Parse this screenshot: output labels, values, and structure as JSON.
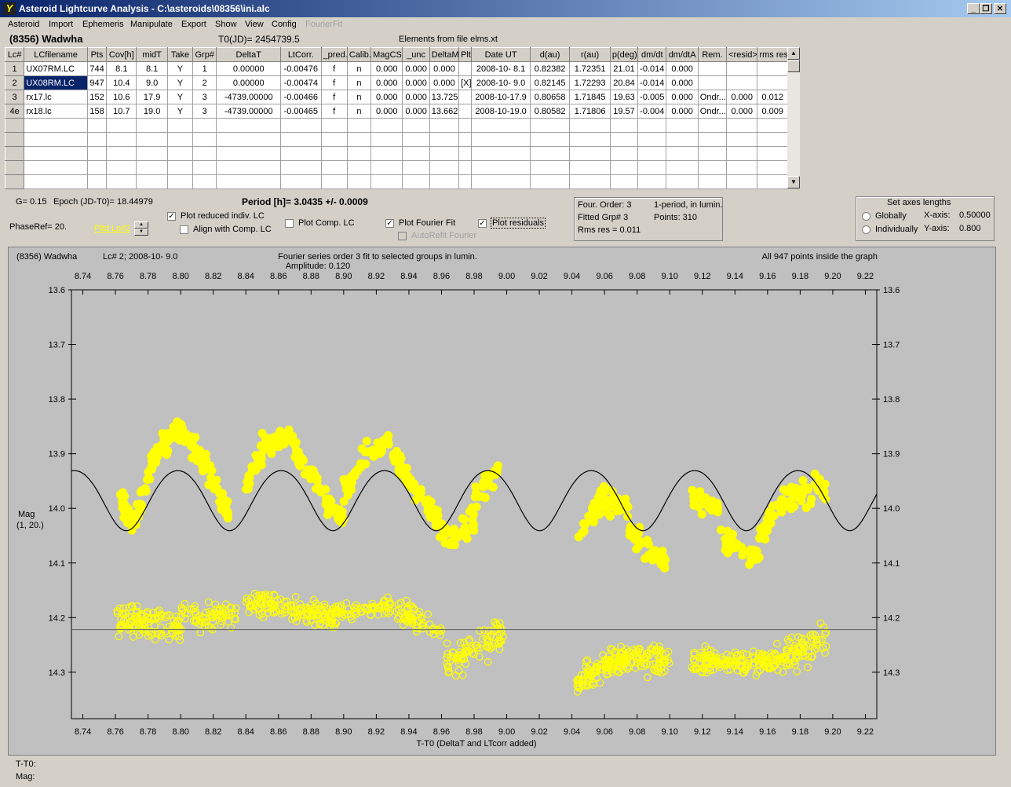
{
  "window": {
    "title": "Asteroid Lightcurve Analysis - C:\\asteroids\\08356\\ini.alc",
    "app_icon": "lcalc-app-icon"
  },
  "menu": {
    "items": [
      "Asteroid",
      "Import",
      "Ephemeris",
      "Manipulate",
      "Export",
      "Show",
      "View",
      "Config"
    ],
    "disabled_item": "FourierFit"
  },
  "header": {
    "asteroid_name": "(8356) Wadwha",
    "t0": "T0(JD)= 2454739.5",
    "elements": "Elements from file elms.xt"
  },
  "table": {
    "columns": [
      "Lc#",
      "LCfilename",
      "Pts",
      "Cov[h]",
      "midT",
      "Take",
      "Grp#",
      "DeltaT",
      "LtCorr.",
      "_pred.",
      "Calib.",
      "MagCS",
      "_unc",
      "DeltaM",
      "Plt",
      "Date UT",
      "d(au)",
      "r(au)",
      "p(deg)",
      "dm/dt",
      "dm/dtA",
      "Rem.",
      "<resid>",
      "rms res"
    ],
    "rows": [
      [
        "1",
        "UX07RM.LC",
        "744",
        "8.1",
        "8.1",
        "Y",
        "1",
        "0.00000",
        "-0.00476",
        "f",
        "n",
        "0.000",
        "0.000",
        "0.000",
        "",
        "2008-10- 8.1",
        "0.82382",
        "1.72351",
        "21.01",
        "-0.014",
        "0.000",
        "",
        "",
        ""
      ],
      [
        "2",
        "UX08RM.LC",
        "947",
        "10.4",
        "9.0",
        "Y",
        "2",
        "0.00000",
        "-0.00474",
        "f",
        "n",
        "0.000",
        "0.000",
        "0.000",
        "[X]",
        "2008-10- 9.0",
        "0.82145",
        "1.72293",
        "20.84",
        "-0.014",
        "0.000",
        "",
        "",
        ""
      ],
      [
        "3",
        "rx17.lc",
        "152",
        "10.6",
        "17.9",
        "Y",
        "3",
        "-4739.00000",
        "-0.00466",
        "f",
        "n",
        "0.000",
        "0.000",
        "13.725",
        "",
        "2008-10-17.9",
        "0.80658",
        "1.71845",
        "19.63",
        "-0.005",
        "0.000",
        "Ondr...",
        "0.000",
        "0.012"
      ],
      [
        "4e",
        "rx18.lc",
        "158",
        "10.7",
        "19.0",
        "Y",
        "3",
        "-4739.00000",
        "-0.00465",
        "f",
        "n",
        "0.000",
        "0.000",
        "13.662",
        "",
        "2008-10-19.0",
        "0.80582",
        "1.71806",
        "19.57",
        "-0.004",
        "0.000",
        "Ondr...",
        "0.000",
        "0.009"
      ]
    ],
    "selected_row": 1
  },
  "controls": {
    "g_value": "G= 0.15",
    "epoch": "Epoch (JD-T0)= 18.44979",
    "period": "Period [h]= 3.0435 +/- 0.0009",
    "phase_ref": "PhaseRef= 20.",
    "pltd_lc": "Pltd Lc#2",
    "plot_reduced": {
      "label": "Plot reduced indiv. LC",
      "checked": true
    },
    "align_comp": {
      "label": "Align with Comp. LC",
      "checked": false
    },
    "plot_comp": {
      "label": "Plot Comp. LC",
      "checked": false
    },
    "plot_fourier": {
      "label": "Plot Fourier Fit",
      "checked": true
    },
    "autorefit": {
      "label": "AutoRefit Fourier",
      "checked": false
    },
    "plot_residuals": {
      "label": "Plot residuals",
      "checked": true
    }
  },
  "fourier_info": {
    "order": "Four. Order:  3",
    "mode": "1-period, in lumin.",
    "fitted": "Fitted Grp# 3",
    "points": "Points: 310",
    "rms": "Rms res     = 0.011"
  },
  "axes": {
    "title": "Set axes lengths",
    "globally": "Globally",
    "individually": "Individually",
    "selected": "Globally",
    "xaxis_label": "X-axis:",
    "xaxis_val": "0.50000",
    "yaxis_label": "Y-axis:",
    "yaxis_val": "0.800"
  },
  "plot": {
    "name": "(8356) Wadwha",
    "lc": "Lc# 2; 2008-10- 9.0",
    "fourier_title": "Fourier series order 3 fit to selected groups in lumin.",
    "amplitude": "Amplitude: 0.120",
    "points_info": "All 947 points inside the graph",
    "ylabel": "Mag",
    "ylabel2": "(1, 20.)",
    "xlabel": "T-T0 (DeltaT and LTcorr added)",
    "colors": {
      "points": "#ffff00",
      "background": "#c0c0c0",
      "curve": "#000000",
      "residual_line": "#606060"
    }
  },
  "chart_data": {
    "type": "scatter",
    "x_ticks": [
      "8.74",
      "8.76",
      "8.78",
      "8.80",
      "8.82",
      "8.84",
      "8.86",
      "8.88",
      "8.90",
      "8.92",
      "8.94",
      "8.96",
      "8.98",
      "9.00",
      "9.02",
      "9.04",
      "9.06",
      "9.08",
      "9.10",
      "9.12",
      "9.14",
      "9.16",
      "9.18",
      "9.20",
      "9.22"
    ],
    "y_ticks": [
      "13.6",
      "13.7",
      "13.8",
      "13.9",
      "14.0",
      "14.1",
      "14.2",
      "14.3"
    ],
    "xlim": [
      8.733,
      9.227
    ],
    "ylim": [
      13.6,
      14.385
    ],
    "y_inverted": true,
    "fourier_period_days": 0.0634,
    "fourier_mean": 13.982,
    "fourier_amplitude": 0.055,
    "residual_baseline": 14.222,
    "observations": [
      {
        "x": [
          8.762,
          8.772
        ],
        "y": [
          13.97,
          14.04
        ],
        "spread": 0.035,
        "n": 30
      },
      {
        "x": [
          8.772,
          8.785
        ],
        "y": [
          14.02,
          13.9
        ],
        "spread": 0.035,
        "n": 30
      },
      {
        "x": [
          8.785,
          8.8
        ],
        "y": [
          13.9,
          13.85
        ],
        "spread": 0.035,
        "n": 40
      },
      {
        "x": [
          8.8,
          8.815
        ],
        "y": [
          13.85,
          13.92
        ],
        "spread": 0.035,
        "n": 40
      },
      {
        "x": [
          8.815,
          8.83
        ],
        "y": [
          13.92,
          14.02
        ],
        "spread": 0.035,
        "n": 30
      },
      {
        "x": [
          8.84,
          8.85
        ],
        "y": [
          13.96,
          13.9
        ],
        "spread": 0.03,
        "n": 20
      },
      {
        "x": [
          8.85,
          8.87
        ],
        "y": [
          13.88,
          13.87
        ],
        "spread": 0.035,
        "n": 40
      },
      {
        "x": [
          8.87,
          8.885
        ],
        "y": [
          13.9,
          13.96
        ],
        "spread": 0.035,
        "n": 30
      },
      {
        "x": [
          8.885,
          8.9
        ],
        "y": [
          13.97,
          14.02
        ],
        "spread": 0.03,
        "n": 30
      },
      {
        "x": [
          8.9,
          8.915
        ],
        "y": [
          13.97,
          13.9
        ],
        "spread": 0.035,
        "n": 30
      },
      {
        "x": [
          8.915,
          8.928
        ],
        "y": [
          13.9,
          13.88
        ],
        "spread": 0.03,
        "n": 20
      },
      {
        "x": [
          8.93,
          8.945
        ],
        "y": [
          13.9,
          13.97
        ],
        "spread": 0.035,
        "n": 30
      },
      {
        "x": [
          8.945,
          8.965
        ],
        "y": [
          13.97,
          14.06
        ],
        "spread": 0.035,
        "n": 35
      },
      {
        "x": [
          8.965,
          8.98
        ],
        "y": [
          14.06,
          14.02
        ],
        "spread": 0.04,
        "n": 30
      },
      {
        "x": [
          8.98,
          8.995
        ],
        "y": [
          13.98,
          13.93
        ],
        "spread": 0.035,
        "n": 25
      },
      {
        "x": [
          9.044,
          9.06
        ],
        "y": [
          14.05,
          13.97
        ],
        "spread": 0.035,
        "n": 35
      },
      {
        "x": [
          9.06,
          9.075
        ],
        "y": [
          13.98,
          14.0
        ],
        "spread": 0.04,
        "n": 35
      },
      {
        "x": [
          9.075,
          9.098
        ],
        "y": [
          14.04,
          14.1
        ],
        "spread": 0.035,
        "n": 40
      },
      {
        "x": [
          9.113,
          9.13
        ],
        "y": [
          13.98,
          14.0
        ],
        "spread": 0.03,
        "n": 35
      },
      {
        "x": [
          9.13,
          9.155
        ],
        "y": [
          14.05,
          14.1
        ],
        "spread": 0.035,
        "n": 40
      },
      {
        "x": [
          9.155,
          9.17
        ],
        "y": [
          14.05,
          13.98
        ],
        "spread": 0.035,
        "n": 25
      },
      {
        "x": [
          9.17,
          9.196
        ],
        "y": [
          13.98,
          13.96
        ],
        "spread": 0.04,
        "n": 35
      }
    ],
    "residuals": [
      {
        "x": [
          8.761,
          8.8
        ],
        "y": [
          14.2,
          14.22
        ],
        "spread": 0.045,
        "n": 110
      },
      {
        "x": [
          8.8,
          8.835
        ],
        "y": [
          14.2,
          14.2
        ],
        "spread": 0.04,
        "n": 70
      },
      {
        "x": [
          8.84,
          8.895
        ],
        "y": [
          14.17,
          14.2
        ],
        "spread": 0.04,
        "n": 150
      },
      {
        "x": [
          8.895,
          8.93
        ],
        "y": [
          14.19,
          14.18
        ],
        "spread": 0.03,
        "n": 60
      },
      {
        "x": [
          8.932,
          8.96
        ],
        "y": [
          14.19,
          14.22
        ],
        "spread": 0.035,
        "n": 60
      },
      {
        "x": [
          8.963,
          8.998
        ],
        "y": [
          14.28,
          14.23
        ],
        "spread": 0.045,
        "n": 80
      },
      {
        "x": [
          9.043,
          9.065
        ],
        "y": [
          14.32,
          14.28
        ],
        "spread": 0.04,
        "n": 70
      },
      {
        "x": [
          9.06,
          9.1
        ],
        "y": [
          14.28,
          14.28
        ],
        "spread": 0.04,
        "n": 130
      },
      {
        "x": [
          9.113,
          9.16
        ],
        "y": [
          14.28,
          14.28
        ],
        "spread": 0.035,
        "n": 140
      },
      {
        "x": [
          9.16,
          9.196
        ],
        "y": [
          14.28,
          14.24
        ],
        "spread": 0.045,
        "n": 100
      }
    ]
  },
  "status": {
    "tt0": "T-T0:",
    "mag": "Mag:"
  }
}
